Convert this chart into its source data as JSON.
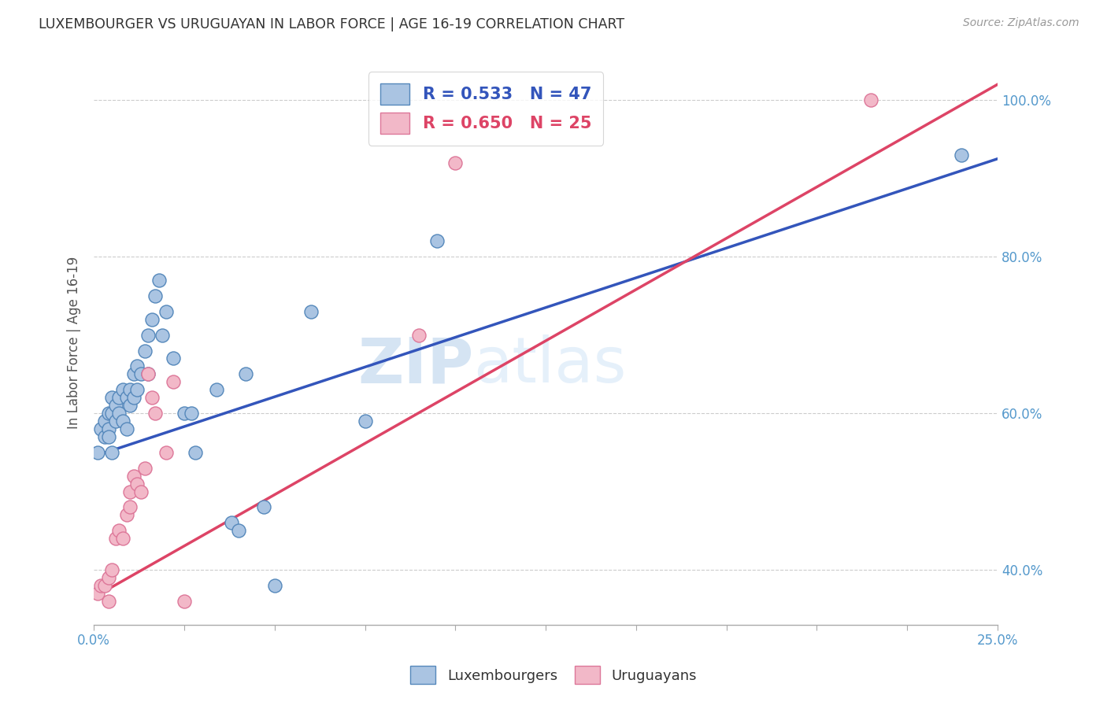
{
  "title": "LUXEMBOURGER VS URUGUAYAN IN LABOR FORCE | AGE 16-19 CORRELATION CHART",
  "source": "Source: ZipAtlas.com",
  "ylabel": "In Labor Force | Age 16-19",
  "xlim": [
    0.0,
    0.25
  ],
  "ylim": [
    0.33,
    1.05
  ],
  "ytick_values": [
    0.4,
    0.6,
    0.8,
    1.0
  ],
  "blue_r": "0.533",
  "blue_n": "47",
  "pink_r": "0.650",
  "pink_n": "25",
  "blue_color": "#aac4e2",
  "blue_edge": "#5588bb",
  "pink_color": "#f2b8c8",
  "pink_edge": "#dd7799",
  "blue_line_color": "#3355bb",
  "pink_line_color": "#dd4466",
  "watermark_zip": "ZIP",
  "watermark_atlas": "atlas",
  "legend_label_blue": "Luxembourgers",
  "legend_label_pink": "Uruguayans",
  "blue_points_x": [
    0.001,
    0.002,
    0.003,
    0.003,
    0.004,
    0.004,
    0.004,
    0.005,
    0.005,
    0.005,
    0.006,
    0.006,
    0.007,
    0.007,
    0.008,
    0.008,
    0.009,
    0.009,
    0.01,
    0.01,
    0.011,
    0.011,
    0.012,
    0.012,
    0.013,
    0.014,
    0.015,
    0.015,
    0.016,
    0.017,
    0.018,
    0.019,
    0.02,
    0.022,
    0.025,
    0.027,
    0.028,
    0.034,
    0.038,
    0.04,
    0.042,
    0.047,
    0.05,
    0.06,
    0.075,
    0.095,
    0.24
  ],
  "blue_points_y": [
    0.55,
    0.58,
    0.57,
    0.59,
    0.6,
    0.58,
    0.57,
    0.55,
    0.6,
    0.62,
    0.61,
    0.59,
    0.62,
    0.6,
    0.63,
    0.59,
    0.62,
    0.58,
    0.63,
    0.61,
    0.65,
    0.62,
    0.66,
    0.63,
    0.65,
    0.68,
    0.7,
    0.65,
    0.72,
    0.75,
    0.77,
    0.7,
    0.73,
    0.67,
    0.6,
    0.6,
    0.55,
    0.63,
    0.46,
    0.45,
    0.65,
    0.48,
    0.38,
    0.73,
    0.59,
    0.82,
    0.93
  ],
  "pink_points_x": [
    0.001,
    0.002,
    0.003,
    0.004,
    0.004,
    0.005,
    0.006,
    0.007,
    0.008,
    0.009,
    0.01,
    0.01,
    0.011,
    0.012,
    0.013,
    0.014,
    0.015,
    0.016,
    0.017,
    0.02,
    0.022,
    0.025,
    0.09,
    0.1,
    0.215
  ],
  "pink_points_y": [
    0.37,
    0.38,
    0.38,
    0.36,
    0.39,
    0.4,
    0.44,
    0.45,
    0.44,
    0.47,
    0.5,
    0.48,
    0.52,
    0.51,
    0.5,
    0.53,
    0.65,
    0.62,
    0.6,
    0.55,
    0.64,
    0.36,
    0.7,
    0.92,
    1.0
  ],
  "blue_line_x": [
    0.0,
    0.25
  ],
  "blue_line_y": [
    0.545,
    0.925
  ],
  "pink_line_x": [
    0.0,
    0.25
  ],
  "pink_line_y": [
    0.365,
    1.02
  ]
}
